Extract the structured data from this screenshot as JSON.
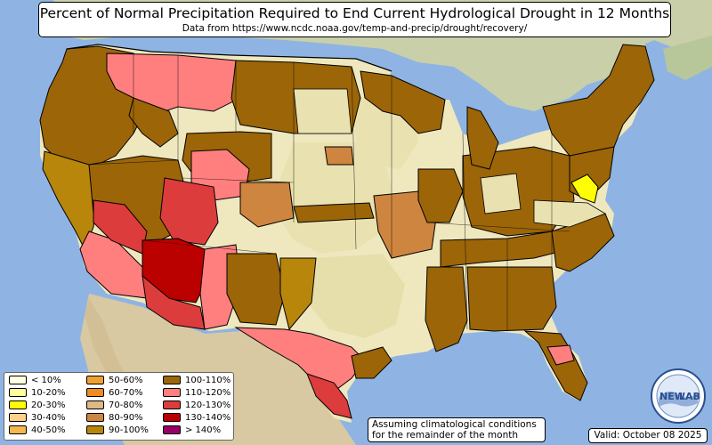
{
  "header": {
    "title": "Percent of Normal Precipitation Required to End Current Hydrological Drought in 12 Months",
    "subtitle": "Data from https://www.ncdc.noaa.gov/temp-and-precip/drought/recovery/"
  },
  "legend": {
    "items": [
      {
        "label": "< 10%",
        "color": "#ffffe0"
      },
      {
        "label": "10-20%",
        "color": "#ffff99"
      },
      {
        "label": "20-30%",
        "color": "#ffff00"
      },
      {
        "label": "30-40%",
        "color": "#ffd28c"
      },
      {
        "label": "40-50%",
        "color": "#f5b84c"
      },
      {
        "label": "50-60%",
        "color": "#f0a030"
      },
      {
        "label": "60-70%",
        "color": "#f08c20"
      },
      {
        "label": "70-80%",
        "color": "#deb887"
      },
      {
        "label": "80-90%",
        "color": "#cd853f"
      },
      {
        "label": "90-100%",
        "color": "#b8860b"
      },
      {
        "label": "100-110%",
        "color": "#9b6508"
      },
      {
        "label": "110-120%",
        "color": "#ff7f7f"
      },
      {
        "label": "120-130%",
        "color": "#dd3c3c"
      },
      {
        "label": "130-140%",
        "color": "#bb0000"
      },
      {
        "label": "> 140%",
        "color": "#990066"
      }
    ]
  },
  "note": {
    "line1": "Assuming climatological conditions",
    "line2": "for the remainder of the month"
  },
  "valid": {
    "label": "Valid: October 08 2025"
  },
  "logo": {
    "text_left": "NEW",
    "text_right": "LAB"
  }
}
